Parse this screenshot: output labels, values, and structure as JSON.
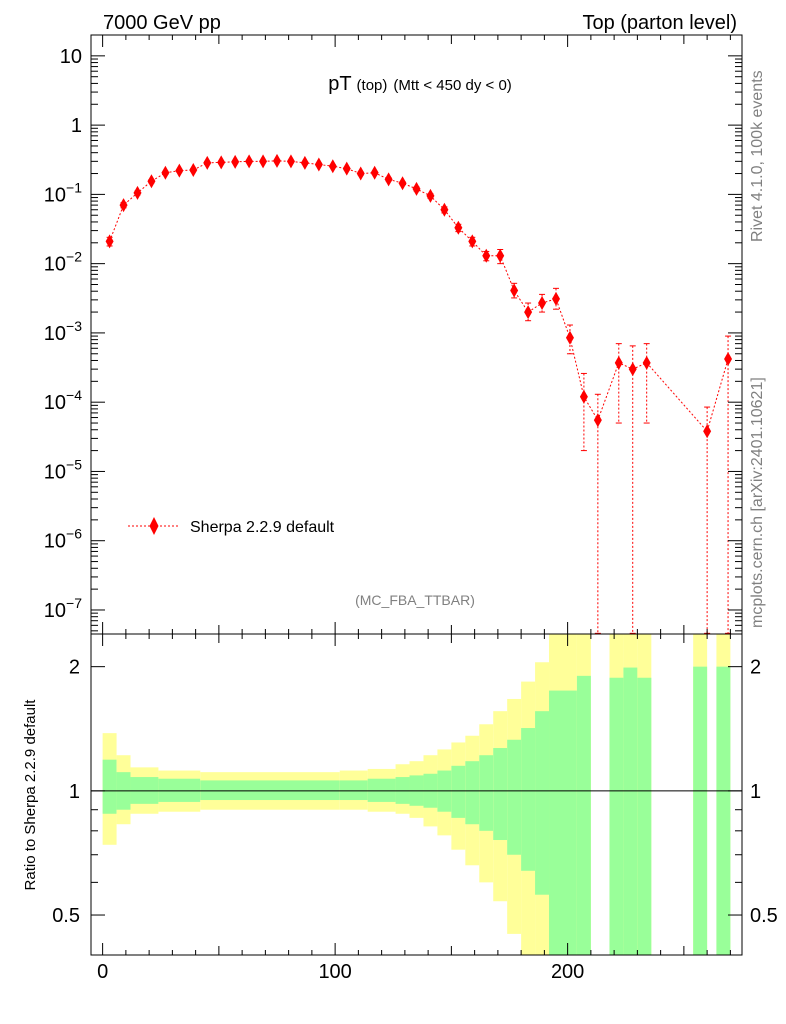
{
  "header": {
    "left": "7000 GeV pp",
    "right": "Top (parton level)"
  },
  "side_labels": {
    "top": "Rivet 4.1.0,  100k events",
    "bottom": "mcplots.cern.ch [arXiv:2401.10621]"
  },
  "colors": {
    "series": "#ff0000",
    "band_inner": "#99ff99",
    "band_outer": "#ffff99"
  },
  "chart_data": [
    {
      "type": "scatter",
      "title": "pT",
      "title_sub": "(top)",
      "title_cut": "(Mtt < 450 dy < 0)",
      "analysis_tag": "(MC_FBA_TTBAR)",
      "legend": "Sherpa 2.2.9 default",
      "yscale": "log",
      "xlim": [
        -5,
        275
      ],
      "ylim": [
        4.5e-08,
        20
      ],
      "ytick_labels": [
        {
          "v": 1e-07,
          "base": "10",
          "exp": "−7"
        },
        {
          "v": 1e-06,
          "base": "10",
          "exp": "−6"
        },
        {
          "v": 1e-05,
          "base": "10",
          "exp": "−5"
        },
        {
          "v": 0.0001,
          "base": "10",
          "exp": "−4"
        },
        {
          "v": 0.001,
          "base": "10",
          "exp": "−3"
        },
        {
          "v": 0.01,
          "base": "10",
          "exp": "−2"
        },
        {
          "v": 0.1,
          "base": "10",
          "exp": "−1"
        },
        {
          "v": 1,
          "base": "1",
          "exp": ""
        },
        {
          "v": 10,
          "base": "10",
          "exp": ""
        }
      ],
      "series": [
        {
          "name": "Sherpa 2.2.9 default",
          "points": [
            {
              "x": 3,
              "y": 0.021,
              "lo": 0.018,
              "hi": 0.024
            },
            {
              "x": 9,
              "y": 0.07,
              "lo": 0.064,
              "hi": 0.076
            },
            {
              "x": 15,
              "y": 0.105,
              "lo": 0.098,
              "hi": 0.112
            },
            {
              "x": 21,
              "y": 0.155,
              "lo": 0.146,
              "hi": 0.164
            },
            {
              "x": 27,
              "y": 0.205,
              "lo": 0.195,
              "hi": 0.215
            },
            {
              "x": 33,
              "y": 0.22,
              "lo": 0.21,
              "hi": 0.23
            },
            {
              "x": 39,
              "y": 0.225,
              "lo": 0.215,
              "hi": 0.235
            },
            {
              "x": 45,
              "y": 0.285,
              "lo": 0.273,
              "hi": 0.297
            },
            {
              "x": 51,
              "y": 0.29,
              "lo": 0.278,
              "hi": 0.302
            },
            {
              "x": 57,
              "y": 0.295,
              "lo": 0.283,
              "hi": 0.307
            },
            {
              "x": 63,
              "y": 0.3,
              "lo": 0.288,
              "hi": 0.312
            },
            {
              "x": 69,
              "y": 0.3,
              "lo": 0.288,
              "hi": 0.312
            },
            {
              "x": 75,
              "y": 0.305,
              "lo": 0.293,
              "hi": 0.317
            },
            {
              "x": 81,
              "y": 0.3,
              "lo": 0.288,
              "hi": 0.312
            },
            {
              "x": 87,
              "y": 0.285,
              "lo": 0.273,
              "hi": 0.297
            },
            {
              "x": 93,
              "y": 0.27,
              "lo": 0.259,
              "hi": 0.281
            },
            {
              "x": 99,
              "y": 0.255,
              "lo": 0.244,
              "hi": 0.266
            },
            {
              "x": 105,
              "y": 0.235,
              "lo": 0.225,
              "hi": 0.245
            },
            {
              "x": 111,
              "y": 0.2,
              "lo": 0.19,
              "hi": 0.21
            },
            {
              "x": 117,
              "y": 0.205,
              "lo": 0.195,
              "hi": 0.215
            },
            {
              "x": 123,
              "y": 0.165,
              "lo": 0.156,
              "hi": 0.174
            },
            {
              "x": 129,
              "y": 0.145,
              "lo": 0.137,
              "hi": 0.153
            },
            {
              "x": 135,
              "y": 0.12,
              "lo": 0.112,
              "hi": 0.128
            },
            {
              "x": 141,
              "y": 0.095,
              "lo": 0.088,
              "hi": 0.102
            },
            {
              "x": 147,
              "y": 0.06,
              "lo": 0.054,
              "hi": 0.066
            },
            {
              "x": 153,
              "y": 0.033,
              "lo": 0.029,
              "hi": 0.037
            },
            {
              "x": 159,
              "y": 0.021,
              "lo": 0.018,
              "hi": 0.024
            },
            {
              "x": 165,
              "y": 0.013,
              "lo": 0.011,
              "hi": 0.015
            },
            {
              "x": 171,
              "y": 0.013,
              "lo": 0.01,
              "hi": 0.016
            },
            {
              "x": 177,
              "y": 0.0041,
              "lo": 0.0032,
              "hi": 0.0052
            },
            {
              "x": 183,
              "y": 0.002,
              "lo": 0.0015,
              "hi": 0.0027
            },
            {
              "x": 189,
              "y": 0.0027,
              "lo": 0.002,
              "hi": 0.0036
            },
            {
              "x": 195,
              "y": 0.0031,
              "lo": 0.0022,
              "hi": 0.0044
            },
            {
              "x": 201,
              "y": 0.00085,
              "lo": 0.0005,
              "hi": 0.0013
            },
            {
              "x": 207,
              "y": 0.00012,
              "lo": 2e-05,
              "hi": 0.00026
            },
            {
              "x": 213,
              "y": 5.5e-05,
              "lo": 4.6e-08,
              "hi": 0.00013
            },
            {
              "x": 222,
              "y": 0.00037,
              "lo": 5e-05,
              "hi": 0.0007
            },
            {
              "x": 228,
              "y": 0.0003,
              "lo": 4.6e-08,
              "hi": 0.00065
            },
            {
              "x": 234,
              "y": 0.00037,
              "lo": 5e-05,
              "hi": 0.0007
            },
            {
              "x": 260,
              "y": 3.8e-05,
              "lo": 4.6e-08,
              "hi": 8.5e-05
            },
            {
              "x": 269,
              "y": 0.00042,
              "lo": 4.6e-08,
              "hi": 0.0009
            }
          ]
        }
      ]
    },
    {
      "type": "area",
      "ylabel": "Ratio to Sherpa 2.2.9 default",
      "yscale": "log",
      "xlim": [
        -5,
        275
      ],
      "ylim": [
        0.4,
        2.4
      ],
      "ytick_labels": [
        {
          "v": 0.5,
          "t": "0.5"
        },
        {
          "v": 1,
          "t": "1"
        },
        {
          "v": 2,
          "t": "2"
        }
      ],
      "xtick_labels": [
        {
          "v": 0,
          "t": "0"
        },
        {
          "v": 100,
          "t": "100"
        },
        {
          "v": 200,
          "t": "200"
        }
      ],
      "bins": [
        {
          "x0": 0,
          "x1": 6,
          "g": [
            0.88,
            1.19
          ],
          "y": [
            0.74,
            1.38
          ]
        },
        {
          "x0": 6,
          "x1": 12,
          "g": [
            0.9,
            1.11
          ],
          "y": [
            0.83,
            1.22
          ]
        },
        {
          "x0": 12,
          "x1": 24,
          "g": [
            0.93,
            1.08
          ],
          "y": [
            0.88,
            1.14
          ]
        },
        {
          "x0": 24,
          "x1": 42,
          "g": [
            0.94,
            1.07
          ],
          "y": [
            0.89,
            1.12
          ]
        },
        {
          "x0": 42,
          "x1": 102,
          "g": [
            0.95,
            1.06
          ],
          "y": [
            0.9,
            1.11
          ]
        },
        {
          "x0": 102,
          "x1": 114,
          "g": [
            0.95,
            1.06
          ],
          "y": [
            0.9,
            1.12
          ]
        },
        {
          "x0": 114,
          "x1": 126,
          "g": [
            0.94,
            1.07
          ],
          "y": [
            0.89,
            1.13
          ]
        },
        {
          "x0": 126,
          "x1": 132,
          "g": [
            0.93,
            1.08
          ],
          "y": [
            0.88,
            1.16
          ]
        },
        {
          "x0": 132,
          "x1": 138,
          "g": [
            0.92,
            1.09
          ],
          "y": [
            0.86,
            1.18
          ]
        },
        {
          "x0": 138,
          "x1": 144,
          "g": [
            0.91,
            1.1
          ],
          "y": [
            0.82,
            1.22
          ]
        },
        {
          "x0": 144,
          "x1": 150,
          "g": [
            0.89,
            1.12
          ],
          "y": [
            0.78,
            1.26
          ]
        },
        {
          "x0": 150,
          "x1": 156,
          "g": [
            0.86,
            1.15
          ],
          "y": [
            0.72,
            1.31
          ]
        },
        {
          "x0": 156,
          "x1": 162,
          "g": [
            0.83,
            1.18
          ],
          "y": [
            0.66,
            1.36
          ]
        },
        {
          "x0": 162,
          "x1": 168,
          "g": [
            0.8,
            1.22
          ],
          "y": [
            0.6,
            1.45
          ]
        },
        {
          "x0": 168,
          "x1": 174,
          "g": [
            0.76,
            1.27
          ],
          "y": [
            0.54,
            1.56
          ]
        },
        {
          "x0": 174,
          "x1": 180,
          "g": [
            0.7,
            1.33
          ],
          "y": [
            0.45,
            1.67
          ]
        },
        {
          "x0": 180,
          "x1": 186,
          "g": [
            0.64,
            1.42
          ],
          "y": [
            0.4,
            1.84
          ]
        },
        {
          "x0": 186,
          "x1": 192,
          "g": [
            0.56,
            1.56
          ],
          "y": [
            0.4,
            2.05
          ]
        },
        {
          "x0": 192,
          "x1": 204,
          "g": [
            0.4,
            1.75
          ],
          "y": [
            0.4,
            2.4
          ]
        },
        {
          "x0": 204,
          "x1": 210,
          "g": [
            0.4,
            1.9
          ],
          "y": [
            0.4,
            2.4
          ]
        },
        {
          "x0": 218,
          "x1": 224,
          "g": [
            0.4,
            1.88
          ],
          "y": [
            0.4,
            2.4
          ]
        },
        {
          "x0": 224,
          "x1": 230,
          "g": [
            0.4,
            1.99
          ],
          "y": [
            0.4,
            2.4
          ]
        },
        {
          "x0": 230,
          "x1": 236,
          "g": [
            0.4,
            1.88
          ],
          "y": [
            0.4,
            2.4
          ]
        },
        {
          "x0": 254,
          "x1": 260,
          "g": [
            0.4,
            2.0
          ],
          "y": [
            0.4,
            2.4
          ]
        },
        {
          "x0": 264,
          "x1": 270,
          "g": [
            0.4,
            2.0
          ],
          "y": [
            0.4,
            2.4
          ]
        }
      ]
    }
  ]
}
